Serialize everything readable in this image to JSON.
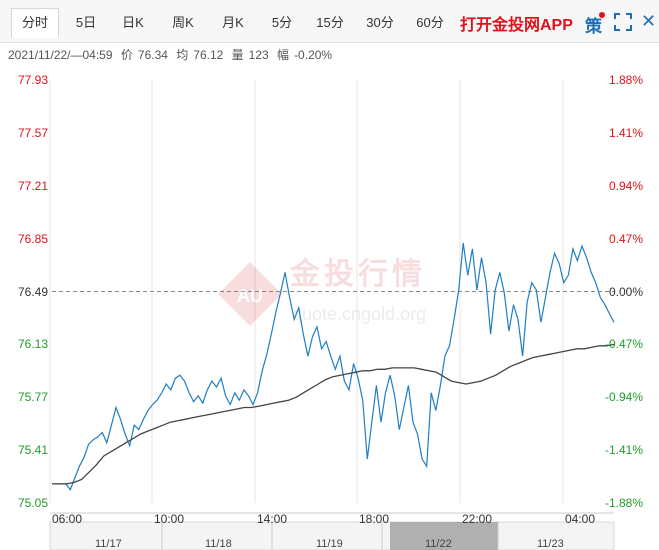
{
  "tabs": [
    "分时",
    "5日",
    "日K",
    "周K",
    "月K",
    "5分",
    "15分",
    "30分",
    "60分"
  ],
  "active_tab": 0,
  "app_link": "打开金投网APP",
  "icons": {
    "strategy": "策",
    "fullscreen": "fullscreen-icon",
    "close": "close-icon"
  },
  "info": {
    "datetime": "2021/11/22/—04:59",
    "price_label": "价",
    "price": "76.34",
    "avg_label": "均",
    "avg": "76.12",
    "volume_label": "量",
    "volume": "123",
    "change_label": "幅",
    "change": "-0.20%"
  },
  "watermark": {
    "text": "金投行情",
    "sub": "quote.cngold.org",
    "logo": "AU"
  },
  "colors": {
    "up": "#e0121b",
    "down": "#1e9e2a",
    "neutral": "#333333",
    "price_line": "#1f7ec5",
    "avg_line": "#444444"
  },
  "chart_data": {
    "type": "line",
    "prev_close": 76.49,
    "ylim": [
      75.05,
      77.93
    ],
    "y_ticks": [
      "77.93",
      "77.57",
      "77.21",
      "76.85",
      "76.49",
      "76.13",
      "75.77",
      "75.41",
      "75.05"
    ],
    "pct_ticks": [
      "1.88%",
      "1.41%",
      "0.94%",
      "0.47%",
      "0.00%",
      "-0.47%",
      "-0.94%",
      "-1.41%",
      "-1.88%"
    ],
    "x_ticks": [
      "06:00",
      "10:00",
      "14:00",
      "18:00",
      "22:00",
      "04:00"
    ],
    "nav_dates": [
      "11/17",
      "11/18",
      "11/19",
      "11/22",
      "11/23"
    ],
    "series": [
      {
        "values": [
          75.18,
          75.18,
          75.18,
          75.18,
          75.14,
          75.22,
          75.3,
          75.36,
          75.45,
          75.48,
          75.5,
          75.53,
          75.46,
          75.58,
          75.7,
          75.62,
          75.52,
          75.44,
          75.58,
          75.55,
          75.62,
          75.68,
          75.72,
          75.75,
          75.8,
          75.86,
          75.82,
          75.9,
          75.92,
          75.88,
          75.8,
          75.74,
          75.78,
          75.73,
          75.82,
          75.88,
          75.84,
          75.9,
          75.78,
          75.72,
          75.8,
          75.75,
          75.82,
          75.78,
          75.72,
          75.8,
          75.95,
          76.06,
          76.2,
          76.35,
          76.48,
          76.62,
          76.45,
          76.3,
          76.38,
          76.2,
          76.05,
          76.18,
          76.25,
          76.1,
          76.15,
          76.05,
          75.96,
          76.05,
          75.88,
          75.82,
          76.0,
          75.9,
          75.75,
          75.35,
          75.6,
          75.85,
          75.6,
          75.8,
          75.92,
          75.78,
          75.55,
          75.7,
          75.85,
          75.6,
          75.52,
          75.35,
          75.3,
          75.8,
          75.68,
          75.85,
          76.05,
          76.12,
          76.3,
          76.5,
          76.82,
          76.6,
          76.78,
          76.5,
          76.72,
          76.55,
          76.2,
          76.5,
          76.62,
          76.48,
          76.22,
          76.4,
          76.3,
          76.05,
          76.42,
          76.55,
          76.5,
          76.28,
          76.45,
          76.62,
          76.75,
          76.68,
          76.55,
          76.6,
          76.78,
          76.7,
          76.8,
          76.72,
          76.62,
          76.55,
          76.45,
          76.4,
          76.34,
          76.28
        ],
        "color_key": "price_line"
      },
      {
        "values": [
          75.18,
          75.18,
          75.18,
          75.19,
          75.21,
          75.26,
          75.31,
          75.37,
          75.4,
          75.43,
          75.46,
          75.49,
          75.52,
          75.54,
          75.56,
          75.58,
          75.6,
          75.61,
          75.62,
          75.63,
          75.64,
          75.65,
          75.66,
          75.67,
          75.68,
          75.69,
          75.7,
          75.7,
          75.71,
          75.72,
          75.73,
          75.74,
          75.75,
          75.77,
          75.8,
          75.83,
          75.86,
          75.89,
          75.91,
          75.92,
          75.93,
          75.94,
          75.95,
          75.95,
          75.96,
          75.96,
          75.97,
          75.97,
          75.97,
          75.97,
          75.96,
          75.95,
          75.94,
          75.91,
          75.88,
          75.87,
          75.86,
          75.87,
          75.88,
          75.9,
          75.92,
          75.95,
          75.98,
          76.0,
          76.02,
          76.04,
          76.05,
          76.06,
          76.07,
          76.08,
          76.09,
          76.1,
          76.1,
          76.11,
          76.12,
          76.12,
          76.13
        ],
        "color_key": "avg_line"
      }
    ]
  }
}
